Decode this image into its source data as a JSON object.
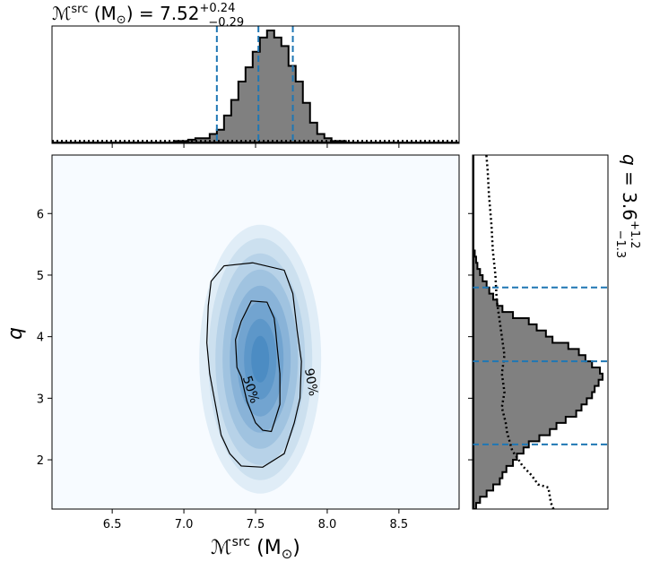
{
  "chart_data": [
    {
      "panel": "top-marginal",
      "type": "histogram",
      "title": {
        "symbol": "ℳ",
        "sup": "src",
        "unit": " (M",
        "sun": "⊙",
        "close": ") = 7.52",
        "upper": "+0.24",
        "lower": "−0.29"
      },
      "xlim": [
        6.08,
        8.92
      ],
      "bin_edges_start": 6.08,
      "bin_width": 0.05,
      "values": [
        0,
        0,
        0,
        0,
        0,
        0,
        0,
        0,
        0,
        0,
        0,
        0,
        0,
        0,
        0,
        0,
        0,
        0.01,
        0.01,
        0.02,
        0.03,
        0.03,
        0.06,
        0.09,
        0.19,
        0.3,
        0.43,
        0.53,
        0.64,
        0.74,
        0.79,
        0.74,
        0.68,
        0.54,
        0.43,
        0.28,
        0.14,
        0.06,
        0.03,
        0.01,
        0.01,
        0,
        0,
        0,
        0,
        0,
        0,
        0,
        0,
        0,
        0,
        0,
        0,
        0,
        0,
        0,
        0
      ],
      "prior_level": 0.012,
      "quantiles": [
        7.23,
        7.52,
        7.76
      ],
      "colors": {
        "fill": "#808080",
        "edge": "#000000",
        "quantile": "#1f77b4"
      }
    },
    {
      "panel": "joint",
      "type": "heatmap",
      "xlim": [
        6.08,
        8.92
      ],
      "ylim": [
        1.2,
        6.95
      ],
      "x_ticks": [
        "6.5",
        "7.0",
        "7.5",
        "8.0",
        "8.5"
      ],
      "y_ticks": [
        "2",
        "3",
        "4",
        "5",
        "6"
      ],
      "center": [
        7.52,
        3.78
      ],
      "contours": [
        {
          "label": "50%",
          "points": [
            [
              7.47,
              4.58
            ],
            [
              7.58,
              4.56
            ],
            [
              7.63,
              4.3
            ],
            [
              7.64,
              4.1
            ],
            [
              7.65,
              3.85
            ],
            [
              7.67,
              3.4
            ],
            [
              7.67,
              2.9
            ],
            [
              7.63,
              2.6
            ],
            [
              7.61,
              2.46
            ],
            [
              7.55,
              2.48
            ],
            [
              7.5,
              2.6
            ],
            [
              7.44,
              2.95
            ],
            [
              7.4,
              3.35
            ],
            [
              7.37,
              3.5
            ],
            [
              7.36,
              3.95
            ],
            [
              7.4,
              4.25
            ]
          ]
        },
        {
          "label": "90%",
          "points": [
            [
              7.28,
              5.15
            ],
            [
              7.48,
              5.2
            ],
            [
              7.7,
              5.08
            ],
            [
              7.76,
              4.7
            ],
            [
              7.79,
              4.1
            ],
            [
              7.82,
              3.6
            ],
            [
              7.81,
              3.0
            ],
            [
              7.77,
              2.6
            ],
            [
              7.7,
              2.1
            ],
            [
              7.55,
              1.88
            ],
            [
              7.4,
              1.9
            ],
            [
              7.32,
              2.1
            ],
            [
              7.26,
              2.4
            ],
            [
              7.22,
              2.9
            ],
            [
              7.18,
              3.4
            ],
            [
              7.16,
              3.9
            ],
            [
              7.17,
              4.5
            ],
            [
              7.19,
              4.9
            ]
          ]
        }
      ],
      "xlabel": {
        "symbol": "ℳ",
        "sup": "src",
        "unit": " (M",
        "sun": "⊙",
        "close": ")"
      },
      "ylabel": "q",
      "colormap": "Blues"
    },
    {
      "panel": "right-marginal",
      "type": "histogram",
      "orientation": "horizontal",
      "title": {
        "symbol": "q",
        "text": " = 3.6",
        "upper": "+1.2",
        "lower": "−1.3"
      },
      "ylim": [
        1.2,
        6.95
      ],
      "bin_edges_start": 1.2,
      "bin_width": 0.1,
      "values": [
        0.02,
        0.05,
        0.1,
        0.15,
        0.2,
        0.22,
        0.25,
        0.3,
        0.33,
        0.38,
        0.42,
        0.5,
        0.58,
        0.63,
        0.7,
        0.78,
        0.82,
        0.86,
        0.9,
        0.92,
        0.95,
        0.98,
        0.96,
        0.9,
        0.85,
        0.8,
        0.72,
        0.6,
        0.55,
        0.48,
        0.42,
        0.3,
        0.22,
        0.18,
        0.15,
        0.12,
        0.1,
        0.07,
        0.05,
        0.03,
        0.02,
        0.01,
        0,
        0,
        0,
        0,
        0,
        0,
        0,
        0,
        0,
        0,
        0,
        0,
        0,
        0,
        0,
        0
      ],
      "prior_curve": [
        [
          0.62,
          1.2
        ],
        [
          0.6,
          1.3
        ],
        [
          0.58,
          1.55
        ],
        [
          0.5,
          1.6
        ],
        [
          0.45,
          1.75
        ],
        [
          0.38,
          1.9
        ],
        [
          0.35,
          2.0
        ],
        [
          0.3,
          2.15
        ],
        [
          0.28,
          2.3
        ],
        [
          0.26,
          2.45
        ],
        [
          0.25,
          2.6
        ],
        [
          0.22,
          2.85
        ],
        [
          0.24,
          3.1
        ],
        [
          0.22,
          3.4
        ],
        [
          0.24,
          3.7
        ],
        [
          0.22,
          4.0
        ],
        [
          0.2,
          4.3
        ],
        [
          0.18,
          4.6
        ],
        [
          0.17,
          5.0
        ],
        [
          0.15,
          5.4
        ],
        [
          0.14,
          5.8
        ],
        [
          0.12,
          6.3
        ],
        [
          0.11,
          6.7
        ],
        [
          0.1,
          6.95
        ]
      ],
      "quantiles": [
        2.25,
        3.6,
        4.8
      ],
      "colors": {
        "fill": "#808080",
        "edge": "#000000",
        "quantile": "#1f77b4"
      }
    }
  ]
}
